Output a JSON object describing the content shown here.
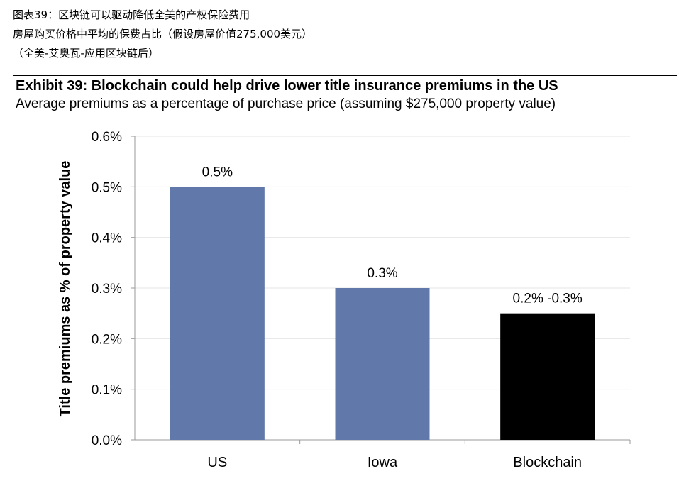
{
  "caption": {
    "line1": "图表39：区块链可以驱动降低全美的产权保险费用",
    "line2": "房屋购买价格中平均的保费占比（假设房屋价值275,000美元）",
    "line3": "（全美-艾奥瓦-应用区块链后）"
  },
  "exhibit": {
    "title": "Exhibit 39: Blockchain could help drive lower title insurance premiums in the US",
    "subtitle": "Average premiums as a percentage of purchase price (assuming $275,000 property value)"
  },
  "chart_data": {
    "type": "bar",
    "categories": [
      "US",
      "Iowa",
      "Blockchain"
    ],
    "values": [
      0.5,
      0.3,
      0.25
    ],
    "data_labels": [
      "0.5%",
      "0.3%",
      "0.2% -0.3%"
    ],
    "bar_colors": [
      "#6078AA",
      "#6078AA",
      "#000000"
    ],
    "ylabel": "Title premiums as % of property value",
    "xlabel": "",
    "ylim": [
      0,
      0.6
    ],
    "yticks": [
      0.0,
      0.1,
      0.2,
      0.3,
      0.4,
      0.5,
      0.6
    ],
    "ytick_labels": [
      "0.0%",
      "0.1%",
      "0.2%",
      "0.3%",
      "0.4%",
      "0.5%",
      "0.6%"
    ],
    "grid": true,
    "legend": "none"
  }
}
